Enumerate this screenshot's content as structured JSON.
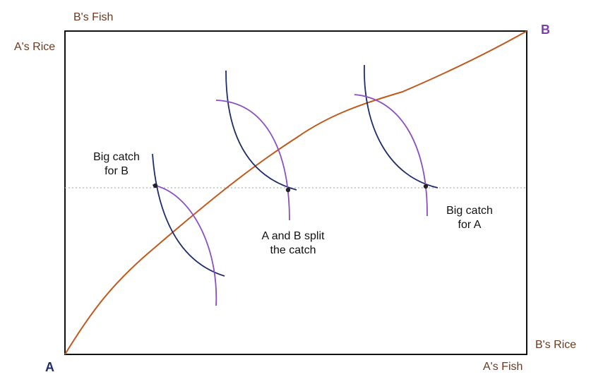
{
  "labels": {
    "b_fish": "B's Fish",
    "a_rice": "A's Rice",
    "b_rice": "B's Rice",
    "a_fish": "A's Fish",
    "corner_a": "A",
    "corner_b": "B"
  },
  "annotations": {
    "big_catch_b_line1": "Big catch",
    "big_catch_b_line2": "for B",
    "split_line1": "A and B split",
    "split_line2": "the catch",
    "big_catch_a_line1": "Big catch",
    "big_catch_a_line2": "for A"
  },
  "colors": {
    "axis_text": "#6b3a1f",
    "corner_a": "#1f2d6b",
    "corner_b": "#7a3fae",
    "contract_curve": "#c0581c",
    "a_indifference": "#1f2d6b",
    "b_indifference": "#8a4fc0",
    "endowment_line": "#b0b0b0"
  }
}
